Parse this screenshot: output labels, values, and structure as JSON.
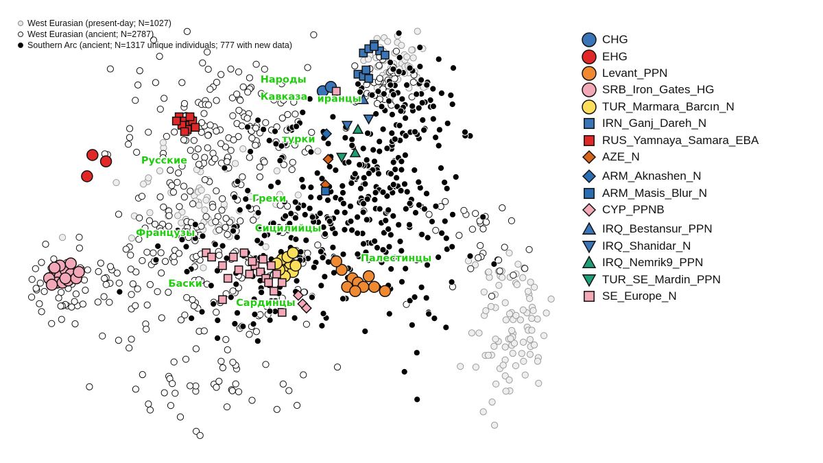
{
  "chart_data": {
    "type": "scatter",
    "title": "",
    "xlabel": "",
    "ylabel": "",
    "xlim": [
      0,
      100
    ],
    "ylim": [
      0,
      100
    ],
    "background_series": [
      {
        "name": "West Eurasian (present-day; N=1027)",
        "style": "light-gray-open-circle"
      },
      {
        "name": "West Eurasian (ancient; N=2787)",
        "style": "white-open-circle"
      },
      {
        "name": "Southern Arc (ancient; N=1317 unique individuals; 777 with new data)",
        "style": "black-filled-circle"
      }
    ],
    "series": [
      {
        "name": "CHG",
        "shape": "circle",
        "color": "#3a75b8",
        "points": [
          [
            54.5,
            85
          ],
          [
            56,
            86
          ]
        ]
      },
      {
        "name": "EHG",
        "shape": "circle",
        "color": "#e02828",
        "points": [
          [
            12,
            70
          ],
          [
            14.5,
            68.5
          ],
          [
            11,
            65
          ]
        ]
      },
      {
        "name": "Levant_PPN",
        "shape": "circle",
        "color": "#f08a32",
        "points": [
          [
            58,
            43
          ],
          [
            60,
            41
          ],
          [
            61,
            40
          ],
          [
            62,
            39
          ],
          [
            59,
            39
          ],
          [
            60.5,
            38
          ],
          [
            63,
            41.5
          ],
          [
            64,
            39
          ],
          [
            66,
            38
          ],
          [
            57,
            45
          ]
        ]
      },
      {
        "name": "SRB_Iron_Gates_HG",
        "shape": "circle",
        "color": "#f3a8b8",
        "points": [
          [
            5,
            42
          ],
          [
            6,
            41.5
          ],
          [
            7,
            43
          ],
          [
            8,
            42
          ],
          [
            5.5,
            40
          ],
          [
            6.5,
            40
          ],
          [
            7.5,
            40.5
          ],
          [
            9,
            41
          ],
          [
            4,
            41
          ],
          [
            6,
            44
          ],
          [
            8,
            44.5
          ],
          [
            5,
            43.5
          ],
          [
            7,
            41
          ],
          [
            9.5,
            42.5
          ],
          [
            4.5,
            39.5
          ]
        ]
      },
      {
        "name": "TUR_Marmara_Barcın_N",
        "shape": "circle",
        "color": "#fbde5a",
        "points": [
          [
            47,
            44
          ],
          [
            48,
            43
          ],
          [
            49,
            42.5
          ],
          [
            47.5,
            41.5
          ],
          [
            46.5,
            43
          ],
          [
            48.5,
            44.5
          ],
          [
            49.5,
            44
          ],
          [
            47,
            45.5
          ],
          [
            48,
            46
          ],
          [
            49,
            47
          ],
          [
            46,
            44.5
          ]
        ]
      },
      {
        "name": "IRN_Ganj_Dareh_N",
        "shape": "square",
        "color": "#3a75b8",
        "points": [
          [
            62,
            94
          ],
          [
            63,
            95
          ],
          [
            64,
            96
          ],
          [
            65,
            94.5
          ],
          [
            66,
            93.5
          ],
          [
            61,
            89
          ],
          [
            62,
            88.5
          ],
          [
            63,
            88
          ],
          [
            62.5,
            90
          ],
          [
            64,
            95.5
          ]
        ]
      },
      {
        "name": "RUS_Yamnaya_Samara_EBA",
        "shape": "square",
        "color": "#e02828",
        "points": [
          [
            28,
            79
          ],
          [
            29,
            78
          ],
          [
            30,
            77
          ],
          [
            29.5,
            76
          ],
          [
            30.5,
            78
          ],
          [
            28.5,
            77
          ],
          [
            31,
            76.5
          ],
          [
            27.5,
            78
          ],
          [
            30,
            79
          ],
          [
            29,
            75.5
          ]
        ]
      },
      {
        "name": "AZE_N",
        "shape": "diamond",
        "color": "#d8631a",
        "points": [
          [
            55.5,
            69
          ],
          [
            55,
            63
          ]
        ]
      },
      {
        "name": "ARM_Aknashen_N",
        "shape": "diamond",
        "color": "#2a6db3",
        "points": [
          [
            55.2,
            75
          ]
        ]
      },
      {
        "name": "ARM_Masis_Blur_N",
        "shape": "square",
        "color": "#2a6db3",
        "points": [
          [
            55,
            61.5
          ]
        ]
      },
      {
        "name": "CYP_PPNB",
        "shape": "diamond",
        "color": "#f3a8b8",
        "points": [
          [
            50,
            37
          ],
          [
            50.8,
            35
          ],
          [
            51.5,
            34
          ]
        ]
      },
      {
        "name": "IRQ_Bestansur_PPN",
        "shape": "tri-up",
        "color": "#3a75b8",
        "points": [
          [
            62,
            83
          ]
        ]
      },
      {
        "name": "IRQ_Shanidar_N",
        "shape": "tri-down",
        "color": "#3a75b8",
        "points": [
          [
            59,
            77
          ],
          [
            63,
            78.5
          ]
        ]
      },
      {
        "name": "IRQ_Nemrik9_PPN",
        "shape": "tri-up",
        "color": "#1f9e78",
        "points": [
          [
            61,
            76
          ],
          [
            60.5,
            70.5
          ]
        ]
      },
      {
        "name": "TUR_SE_Mardin_PPN",
        "shape": "tri-down",
        "color": "#1f9e78",
        "points": [
          [
            58,
            69.5
          ]
        ]
      },
      {
        "name": "SE_Europe_N",
        "shape": "square",
        "color": "#f3a8b8",
        "points": [
          [
            33,
            47
          ],
          [
            36,
            44
          ],
          [
            38,
            46
          ],
          [
            39,
            43
          ],
          [
            41,
            42
          ],
          [
            42,
            44
          ],
          [
            43,
            42.5
          ],
          [
            44,
            41
          ],
          [
            45,
            44
          ],
          [
            46,
            42
          ],
          [
            34,
            46
          ],
          [
            40,
            47
          ],
          [
            37,
            41
          ],
          [
            47,
            40
          ],
          [
            45.5,
            38
          ],
          [
            43.5,
            45.5
          ],
          [
            41.5,
            45
          ],
          [
            57,
            85
          ],
          [
            47,
            33
          ],
          [
            36,
            36
          ],
          [
            44.5,
            40
          ]
        ]
      }
    ],
    "annotations": [
      {
        "text": "Народы",
        "x": 43,
        "y": 87
      },
      {
        "text": "Кавказа",
        "x": 43,
        "y": 83
      },
      {
        "text": "иранцы",
        "x": 53.5,
        "y": 82.5
      },
      {
        "text": "турки",
        "x": 47,
        "y": 73
      },
      {
        "text": "Русские",
        "x": 21,
        "y": 68
      },
      {
        "text": "Греки",
        "x": 41.5,
        "y": 59
      },
      {
        "text": "Сицилийцы",
        "x": 42,
        "y": 52
      },
      {
        "text": "Французы",
        "x": 20,
        "y": 51
      },
      {
        "text": "Палестинцы",
        "x": 61.5,
        "y": 45
      },
      {
        "text": "Баски",
        "x": 26,
        "y": 39
      },
      {
        "text": "Сардинцы",
        "x": 38.5,
        "y": 34.5
      }
    ]
  }
}
